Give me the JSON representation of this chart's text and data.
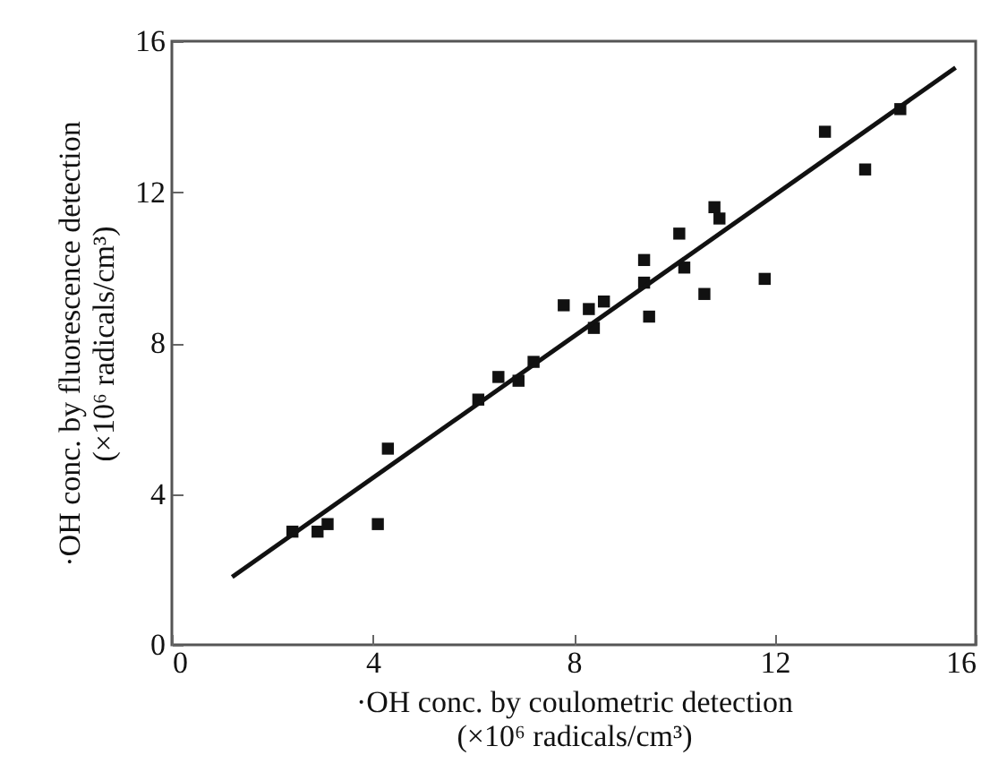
{
  "chart_data": {
    "type": "scatter",
    "xlabel": "·OH conc. by coulometric detection\n(×10⁶ radicals/cm³)",
    "ylabel": "·OH conc. by fluorescence detection\n(×10⁶ radicals/cm³)",
    "xlim": [
      0,
      16
    ],
    "ylim": [
      0,
      16
    ],
    "xticks": [
      0,
      4,
      8,
      12,
      16
    ],
    "yticks": [
      0,
      4,
      8,
      12,
      16
    ],
    "marker": "square",
    "grid": false,
    "series": [
      {
        "color": "#111111",
        "x": [
          2.4,
          2.9,
          3.1,
          4.1,
          4.3,
          6.1,
          6.5,
          6.9,
          7.2,
          7.8,
          8.3,
          8.4,
          8.6,
          9.4,
          9.4,
          9.5,
          10.1,
          10.2,
          10.6,
          10.8,
          10.9,
          11.8,
          13.0,
          13.8,
          14.5
        ],
        "values": [
          3.0,
          3.0,
          3.2,
          3.2,
          5.2,
          6.5,
          7.1,
          7.0,
          7.5,
          9.0,
          8.9,
          8.4,
          9.1,
          9.6,
          10.2,
          8.7,
          10.9,
          10.0,
          9.3,
          11.6,
          11.3,
          9.7,
          13.6,
          12.6,
          14.2
        ]
      },
      {
        "type": "line",
        "color": "#111111",
        "line_style": "solid",
        "marker": "none",
        "x": [
          1.2,
          15.6
        ],
        "values": [
          1.8,
          15.3
        ]
      }
    ]
  }
}
